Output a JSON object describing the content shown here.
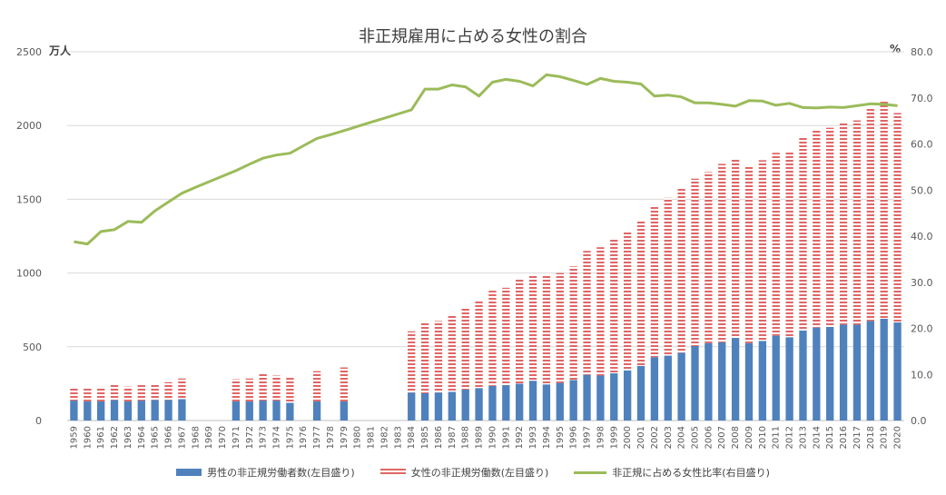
{
  "chart_data": {
    "type": "bar",
    "title": "非正規雇用に占める女性の割合",
    "y_left_unit": "万人",
    "y_right_unit": "%",
    "y_left_ticks": [
      "0",
      "500",
      "1000",
      "1500",
      "2000",
      "2500"
    ],
    "y_right_ticks": [
      "0.0",
      "10.0",
      "20.0",
      "30.0",
      "40.0",
      "50.0",
      "60.0",
      "70.0",
      "80.0"
    ],
    "ylim_left": [
      0,
      2500
    ],
    "ylim_right": [
      0,
      80
    ],
    "stacked": true,
    "grid": true,
    "legend_position": "bottom",
    "categories": [
      "1959",
      "1960",
      "1961",
      "1962",
      "1963",
      "1964",
      "1965",
      "1966",
      "1967",
      "1968",
      "1969",
      "1970",
      "1971",
      "1972",
      "1973",
      "1974",
      "1975",
      "1976",
      "1977",
      "1978",
      "1979",
      "1980",
      "1981",
      "1982",
      "1983",
      "1984",
      "1985",
      "1986",
      "1987",
      "1988",
      "1989",
      "1990",
      "1991",
      "1992",
      "1993",
      "1994",
      "1995",
      "1996",
      "1997",
      "1998",
      "1999",
      "2000",
      "2001",
      "2002",
      "2003",
      "2004",
      "2005",
      "2006",
      "2007",
      "2008",
      "2009",
      "2010",
      "2011",
      "2012",
      "2013",
      "2014",
      "2015",
      "2016",
      "2017",
      "2018",
      "2019",
      "2020"
    ],
    "series": [
      {
        "name": "男性の非正規労働者数(左目盛り)",
        "axis": "left",
        "color": "#4F81BD",
        "values": [
          135,
          130,
          130,
          140,
          130,
          135,
          140,
          140,
          145,
          null,
          null,
          null,
          130,
          130,
          135,
          135,
          120,
          null,
          130,
          null,
          130,
          null,
          null,
          null,
          null,
          190,
          185,
          190,
          195,
          210,
          220,
          235,
          240,
          250,
          270,
          245,
          255,
          275,
          310,
          305,
          320,
          340,
          370,
          430,
          440,
          460,
          505,
          525,
          530,
          560,
          525,
          540,
          575,
          565,
          610,
          630,
          635,
          650,
          650,
          675,
          690,
          665
        ]
      },
      {
        "name": "女性の非正規労働数(左目盛り)",
        "axis": "left",
        "color": "#E06666",
        "values": [
          85,
          90,
          95,
          105,
          100,
          105,
          110,
          120,
          140,
          null,
          null,
          null,
          150,
          155,
          180,
          170,
          170,
          null,
          205,
          null,
          230,
          null,
          null,
          null,
          null,
          415,
          475,
          485,
          520,
          550,
          595,
          645,
          660,
          715,
          715,
          735,
          745,
          770,
          840,
          870,
          910,
          940,
          990,
          1030,
          1070,
          1110,
          1135,
          1160,
          1210,
          1210,
          1205,
          1225,
          1240,
          1255,
          1305,
          1335,
          1350,
          1375,
          1385,
          1440,
          1475,
          1420
        ]
      },
      {
        "name": "非正規に占める女性比率(右目盛り)",
        "axis": "right",
        "type": "line",
        "color": "#9BBB59",
        "values": [
          38.8,
          38.3,
          41.0,
          41.4,
          43.2,
          43.0,
          45.5,
          47.4,
          49.3,
          50.6,
          51.8,
          53.0,
          54.2,
          55.6,
          56.9,
          57.6,
          58.0,
          59.6,
          61.2,
          62.0,
          62.9,
          63.8,
          64.7,
          65.6,
          66.5,
          67.4,
          71.9,
          71.9,
          72.8,
          72.4,
          70.4,
          73.4,
          74.0,
          73.6,
          72.6,
          75.0,
          74.6,
          73.8,
          72.9,
          74.2,
          73.6,
          73.4,
          73.0,
          70.4,
          70.6,
          70.2,
          68.9,
          68.9,
          68.6,
          68.2,
          69.4,
          69.3,
          68.4,
          68.8,
          67.9,
          67.8,
          68.0,
          67.9,
          68.3,
          68.7,
          68.6,
          68.3
        ]
      }
    ]
  }
}
